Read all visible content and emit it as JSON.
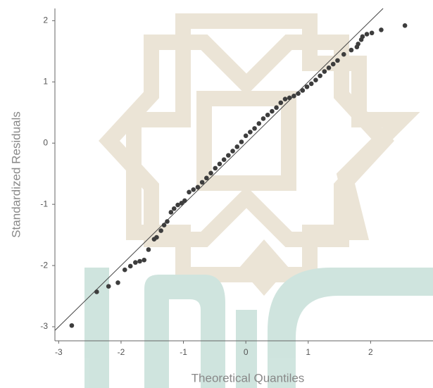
{
  "chart_data": {
    "type": "scatter",
    "x_label": "Theoretical Quantiles",
    "y_label": "Standardized Residuals",
    "x": [
      -2.79,
      -2.39,
      -2.2,
      -2.05,
      -1.94,
      -1.85,
      -1.77,
      -1.7,
      -1.63,
      -1.56,
      -1.47,
      -1.43,
      -1.36,
      -1.31,
      -1.26,
      -1.2,
      -1.15,
      -1.09,
      -1.03,
      -0.98,
      -0.91,
      -0.84,
      -0.77,
      -0.7,
      -0.63,
      -0.56,
      -0.49,
      -0.42,
      -0.35,
      -0.28,
      -0.21,
      -0.14,
      -0.07,
      0.0,
      0.07,
      0.14,
      0.21,
      0.28,
      0.35,
      0.42,
      0.49,
      0.56,
      0.63,
      0.7,
      0.77,
      0.84,
      0.91,
      0.98,
      1.05,
      1.12,
      1.19,
      1.26,
      1.33,
      1.4,
      1.47,
      1.57,
      1.69,
      1.78,
      1.8,
      1.85,
      1.87,
      1.94,
      2.02,
      2.17,
      2.55
    ],
    "values": [
      -2.98,
      -2.43,
      -2.34,
      -2.28,
      -2.07,
      -2.01,
      -1.95,
      -1.93,
      -1.91,
      -1.74,
      -1.57,
      -1.54,
      -1.43,
      -1.34,
      -1.28,
      -1.13,
      -1.07,
      -1.01,
      -0.98,
      -0.94,
      -0.8,
      -0.76,
      -0.72,
      -0.64,
      -0.57,
      -0.49,
      -0.41,
      -0.34,
      -0.27,
      -0.2,
      -0.13,
      -0.06,
      0.02,
      0.12,
      0.18,
      0.24,
      0.32,
      0.4,
      0.46,
      0.52,
      0.58,
      0.66,
      0.72,
      0.74,
      0.77,
      0.81,
      0.86,
      0.92,
      0.97,
      1.03,
      1.1,
      1.17,
      1.23,
      1.29,
      1.35,
      1.45,
      1.52,
      1.57,
      1.62,
      1.69,
      1.74,
      1.78,
      1.8,
      1.85,
      1.92
    ],
    "color": "#3d3d3d",
    "reference_line": {
      "slope": 1,
      "intercept": 0,
      "color": "#444444"
    },
    "xlim": [
      -3.06,
      3.0
    ],
    "xticks": [
      -3,
      -2,
      -1,
      0,
      1,
      2
    ],
    "ylim": [
      -3.23,
      2.2
    ],
    "yticks": [
      -3,
      -2,
      -1,
      0,
      1,
      2
    ]
  }
}
